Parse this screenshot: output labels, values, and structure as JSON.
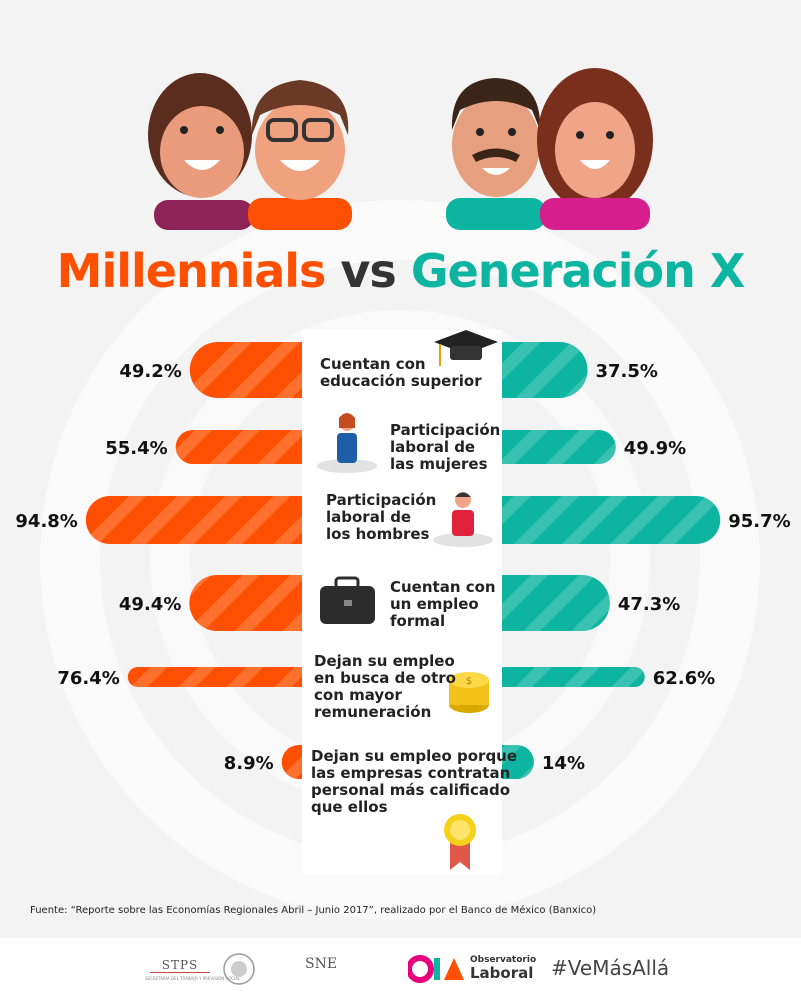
{
  "title": {
    "left": "Millennials",
    "vs": "vs",
    "right": "Generación X"
  },
  "colors": {
    "millennials": "#fe5000",
    "genx": "#0db5a0",
    "panel": "#ffffff"
  },
  "chart_data": {
    "type": "bar",
    "layout": "diverging",
    "series": [
      {
        "name": "Millennials",
        "values": [
          49.2,
          55.4,
          94.8,
          49.4,
          76.4,
          8.9
        ],
        "labels": [
          "49.2%",
          "55.4%",
          "94.8%",
          "49.4%",
          "76.4%",
          "8.9%"
        ]
      },
      {
        "name": "Generación X",
        "values": [
          37.5,
          49.9,
          95.7,
          47.3,
          62.6,
          14
        ],
        "labels": [
          "37.5%",
          "49.9%",
          "95.7%",
          "47.3%",
          "62.6%",
          "14%"
        ]
      }
    ],
    "categories": [
      "Cuentan con educación superior",
      "Participación laboral de las mujeres",
      "Participación laboral de los hombres",
      "Cuentan con un empleo formal",
      "Dejan su empleo en busca de otro con mayor remuneración",
      "Dejan su empleo porque las empresas contratan personal más calificado que ellos"
    ],
    "category_lines": [
      [
        "Cuentan con",
        "educación superior"
      ],
      [
        "Participación",
        "laboral de",
        "las mujeres"
      ],
      [
        "Participación",
        "laboral de",
        "los hombres"
      ],
      [
        "Cuentan con",
        "un empleo",
        "formal"
      ],
      [
        "Dejan su empleo",
        "en busca de otro",
        "con mayor",
        "remuneración"
      ],
      [
        "Dejan su empleo porque",
        "las empresas contratan",
        "personal más calificado",
        "que ellos"
      ]
    ],
    "icons": [
      "graduation-cap-icon",
      "woman-icon",
      "man-icon",
      "briefcase-icon",
      "coins-icon",
      "award-ribbon-icon"
    ]
  },
  "source": "Fuente: “Reporte sobre las Economías Regionales Abril – Junio 2017”, realizado por el Banco de México (Banxico)",
  "footer": {
    "stps": "STPS",
    "stps_sub": "SECRETARÍA DEL TRABAJO Y PREVISIÓN SOCIAL",
    "sne": "SNE",
    "obs_top": "Observatorio",
    "obs_bottom": "Laboral",
    "hashtag": "#VeMásAllá"
  }
}
